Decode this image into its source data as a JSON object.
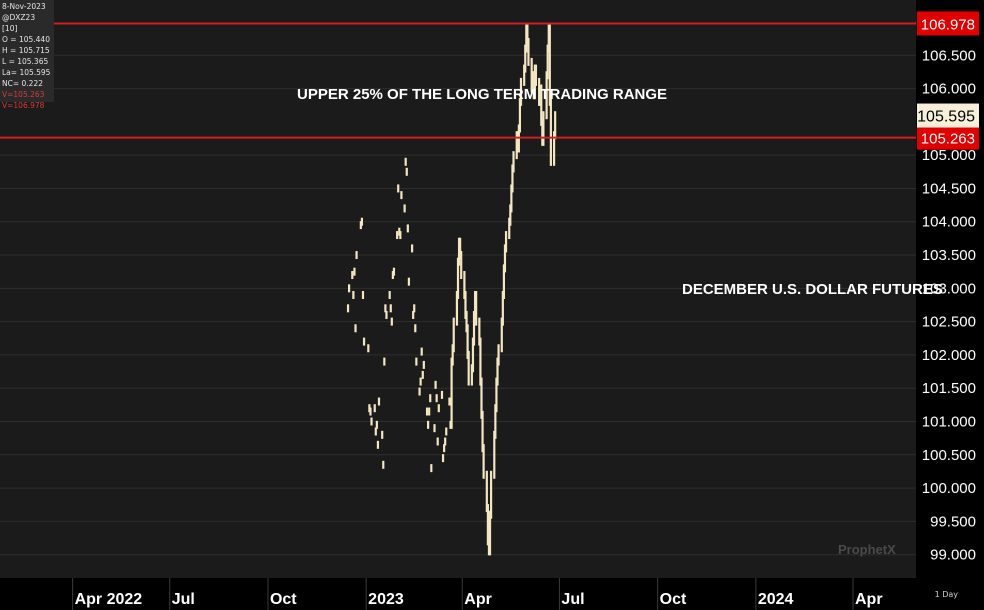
{
  "info": {
    "date": "8-Nov-2023",
    "symbol": "@DXZ23 [10]",
    "open": "O = 105.440",
    "high": "H = 105.715",
    "low": "L = 105.365",
    "last": "La= 105.595",
    "net_change": "NC= 0.222",
    "line1": "V=105.263",
    "line2": "V=106.978"
  },
  "watermark": "ProphetX",
  "timeframe": "1 Day",
  "colors": {
    "price_bar": "#f3e6c0",
    "level_line": "#d21e1e",
    "last_tag_bg": "#f8f0d8",
    "level_tag_bg": "#e00000"
  },
  "chart_data": {
    "type": "ohlc-bar",
    "title": "",
    "annotations": [
      "UPPER 25% OF THE LONG TERM TRADING RANGE",
      "DECEMBER U.S. DOLLAR FUTURES"
    ],
    "y_ticks": [
      "106.500",
      "106.000",
      "105.000",
      "104.500",
      "104.000",
      "103.500",
      "103.000",
      "102.500",
      "102.000",
      "101.500",
      "101.000",
      "100.500",
      "100.000",
      "99.500",
      "99.000"
    ],
    "ylim": [
      98.65,
      107.33
    ],
    "x_ticks": [
      "Apr 2022",
      "Jul",
      "Oct",
      "2023",
      "Apr",
      "Jul",
      "Oct",
      "2024",
      "Apr"
    ],
    "horizontal_lines": [
      {
        "label": "106.978",
        "value": 106.978
      },
      {
        "label": "105.263",
        "value": 105.263
      }
    ],
    "last_price": {
      "label": "105.595",
      "value": 105.595
    },
    "series": [
      {
        "values": [
          [
            "2022-12-15",
            102.7
          ],
          [
            "2022-12-16",
            103.0
          ],
          [
            "2022-12-19",
            103.2
          ],
          [
            "2022-12-20",
            102.9
          ],
          [
            "2022-12-21",
            103.25
          ],
          [
            "2022-12-22",
            102.4
          ],
          [
            "2022-12-23",
            103.5
          ],
          [
            "2022-12-27",
            103.95
          ],
          [
            "2022-12-28",
            104.0
          ],
          [
            "2022-12-29",
            102.9
          ],
          [
            "2022-12-30",
            102.2
          ],
          [
            "2023-01-03",
            102.1
          ],
          [
            "2023-01-04",
            101.2
          ],
          [
            "2023-01-05",
            101.15
          ],
          [
            "2023-01-06",
            101.0
          ],
          [
            "2023-01-09",
            101.2
          ],
          [
            "2023-01-10",
            100.85
          ],
          [
            "2023-01-11",
            100.95
          ],
          [
            "2023-01-12",
            100.65
          ],
          [
            "2023-01-13",
            101.3
          ],
          [
            "2023-01-16",
            100.8
          ],
          [
            "2023-01-17",
            100.35
          ],
          [
            "2023-01-18",
            101.9
          ],
          [
            "2023-01-19",
            102.7
          ],
          [
            "2023-01-20",
            102.6
          ],
          [
            "2023-01-23",
            102.9
          ],
          [
            "2023-01-24",
            102.7
          ],
          [
            "2023-01-25",
            102.5
          ],
          [
            "2023-01-26",
            103.2
          ],
          [
            "2023-01-27",
            103.25
          ],
          [
            "2023-01-30",
            103.8
          ],
          [
            "2023-01-31",
            104.5
          ],
          [
            "2023-02-01",
            103.85
          ],
          [
            "2023-02-02",
            103.8
          ],
          [
            "2023-02-03",
            104.4
          ],
          [
            "2023-02-06",
            104.2
          ],
          [
            "2023-02-07",
            104.9
          ],
          [
            "2023-02-08",
            104.75
          ],
          [
            "2023-02-09",
            103.9
          ],
          [
            "2023-02-10",
            103.1
          ],
          [
            "2023-02-13",
            103.6
          ],
          [
            "2023-02-14",
            102.6
          ],
          [
            "2023-02-15",
            102.7
          ],
          [
            "2023-02-16",
            102.4
          ],
          [
            "2023-02-17",
            101.9
          ],
          [
            "2023-02-20",
            101.45
          ],
          [
            "2023-02-21",
            101.6
          ],
          [
            "2023-02-22",
            102.05
          ],
          [
            "2023-02-23",
            101.7
          ],
          [
            "2023-02-24",
            101.85
          ],
          [
            "2023-02-27",
            101.15
          ],
          [
            "2023-02-28",
            100.95
          ],
          [
            "2023-03-01",
            101.15
          ],
          [
            "2023-03-02",
            101.35
          ],
          [
            "2023-03-03",
            100.3
          ],
          [
            "2023-03-06",
            100.9
          ],
          [
            "2023-03-07",
            101.55
          ],
          [
            "2023-03-08",
            101.35
          ],
          [
            "2023-03-09",
            100.7
          ],
          [
            "2023-03-10",
            101.2
          ],
          [
            "2023-03-13",
            101.4
          ],
          [
            "2023-03-14",
            100.45
          ],
          [
            "2023-03-15",
            100.6
          ],
          [
            "2023-03-16",
            100.7
          ],
          [
            "2023-03-17",
            100.85
          ],
          [
            "2023-03-20",
            101.3
          ],
          [
            "2023-03-21",
            100.95
          ],
          [
            "2023-03-22",
            101.9
          ],
          [
            "2023-03-23",
            102.1
          ],
          [
            "2023-03-24",
            102.5
          ],
          [
            "2023-03-27",
            102.9
          ],
          [
            "2023-03-28",
            103.4
          ],
          [
            "2023-03-29",
            103.7
          ],
          [
            "2023-03-30",
            103.5
          ],
          [
            "2023-03-31",
            103.2
          ],
          [
            "2023-04-03",
            102.9
          ],
          [
            "2023-04-04",
            102.6
          ],
          [
            "2023-04-05",
            102.4
          ],
          [
            "2023-04-06",
            102.0
          ],
          [
            "2023-04-07",
            101.6
          ],
          [
            "2023-04-10",
            101.8
          ],
          [
            "2023-04-11",
            102.2
          ],
          [
            "2023-04-12",
            102.6
          ],
          [
            "2023-04-13",
            102.9
          ],
          [
            "2023-04-14",
            102.5
          ],
          [
            "2023-04-17",
            102.2
          ],
          [
            "2023-04-18",
            101.6
          ],
          [
            "2023-04-19",
            101.1
          ],
          [
            "2023-04-20",
            100.6
          ],
          [
            "2023-04-21",
            100.2
          ],
          [
            "2023-04-24",
            99.7
          ],
          [
            "2023-04-25",
            99.2
          ],
          [
            "2023-04-26",
            99.05
          ],
          [
            "2023-04-27",
            99.6
          ],
          [
            "2023-04-28",
            100.2
          ],
          [
            "2023-05-01",
            100.8
          ],
          [
            "2023-05-02",
            101.2
          ],
          [
            "2023-05-03",
            101.6
          ],
          [
            "2023-05-04",
            101.9
          ],
          [
            "2023-05-05",
            102.1
          ],
          [
            "2023-05-08",
            102.5
          ],
          [
            "2023-05-09",
            102.9
          ],
          [
            "2023-05-10",
            103.3
          ],
          [
            "2023-05-11",
            103.6
          ],
          [
            "2023-05-12",
            103.8
          ],
          [
            "2023-05-15",
            104.0
          ],
          [
            "2023-05-16",
            104.2
          ],
          [
            "2023-05-17",
            104.5
          ],
          [
            "2023-05-18",
            104.8
          ],
          [
            "2023-05-19",
            105.0
          ],
          [
            "2023-05-22",
            105.3
          ],
          [
            "2023-05-23",
            105.1
          ],
          [
            "2023-05-24",
            105.4
          ],
          [
            "2023-05-25",
            105.8
          ],
          [
            "2023-05-26",
            106.1
          ],
          [
            "2023-05-29",
            106.3
          ],
          [
            "2023-05-30",
            106.6
          ],
          [
            "2023-05-31",
            106.9
          ],
          [
            "2023-06-01",
            106.7
          ],
          [
            "2023-06-02",
            106.4
          ],
          [
            "2023-06-05",
            106.0
          ],
          [
            "2023-06-06",
            106.2
          ],
          [
            "2023-06-07",
            105.9
          ],
          [
            "2023-06-08",
            106.3
          ],
          [
            "2023-06-09",
            106.1
          ],
          [
            "2023-06-12",
            105.8
          ],
          [
            "2023-06-13",
            106.0
          ],
          [
            "2023-06-14",
            105.5
          ],
          [
            "2023-06-15",
            105.2
          ],
          [
            "2023-06-16",
            105.6
          ],
          [
            "2023-06-19",
            106.2
          ],
          [
            "2023-06-20",
            106.6
          ],
          [
            "2023-06-21",
            106.9
          ],
          [
            "2023-06-22",
            105.8
          ],
          [
            "2023-06-23",
            104.9
          ],
          [
            "2023-06-26",
            105.3
          ],
          [
            "2023-06-27",
            105.6
          ]
        ]
      }
    ]
  }
}
